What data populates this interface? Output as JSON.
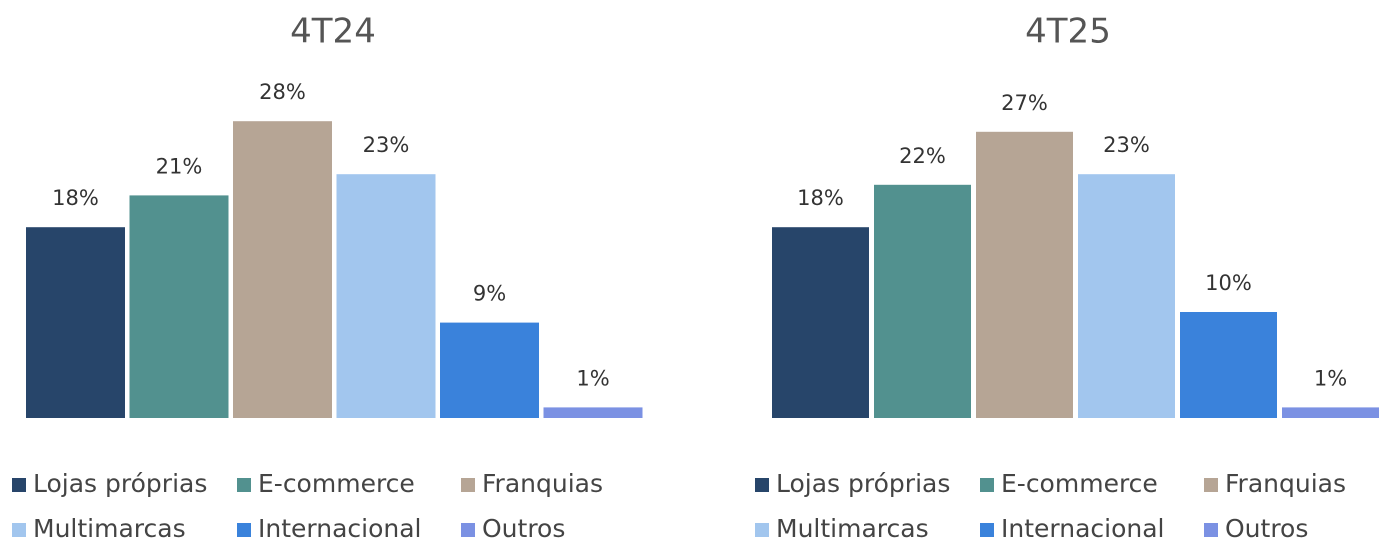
{
  "chart_data": [
    {
      "type": "bar",
      "title": "4T24",
      "categories": [
        "Lojas próprias",
        "E-commerce",
        "Franquias",
        "Multimarcas",
        "Internacional",
        "Outros"
      ],
      "values": [
        18,
        21,
        28,
        23,
        9,
        1
      ],
      "value_labels": [
        "18%",
        "21%",
        "28%",
        "23%",
        "9%",
        "1%"
      ],
      "colors": [
        "#27456a",
        "#52918f",
        "#b6a595",
        "#a2c6ee",
        "#3a82db",
        "#7b91e3"
      ]
    },
    {
      "type": "bar",
      "title": "4T25",
      "categories": [
        "Lojas próprias",
        "E-commerce",
        "Franquias",
        "Multimarcas",
        "Internacional",
        "Outros"
      ],
      "values": [
        18,
        22,
        27,
        23,
        10,
        1
      ],
      "value_labels": [
        "18%",
        "22%",
        "27%",
        "23%",
        "10%",
        "1%"
      ],
      "colors": [
        "#27456a",
        "#52918f",
        "#b6a595",
        "#a2c6ee",
        "#3a82db",
        "#7b91e3"
      ]
    }
  ]
}
